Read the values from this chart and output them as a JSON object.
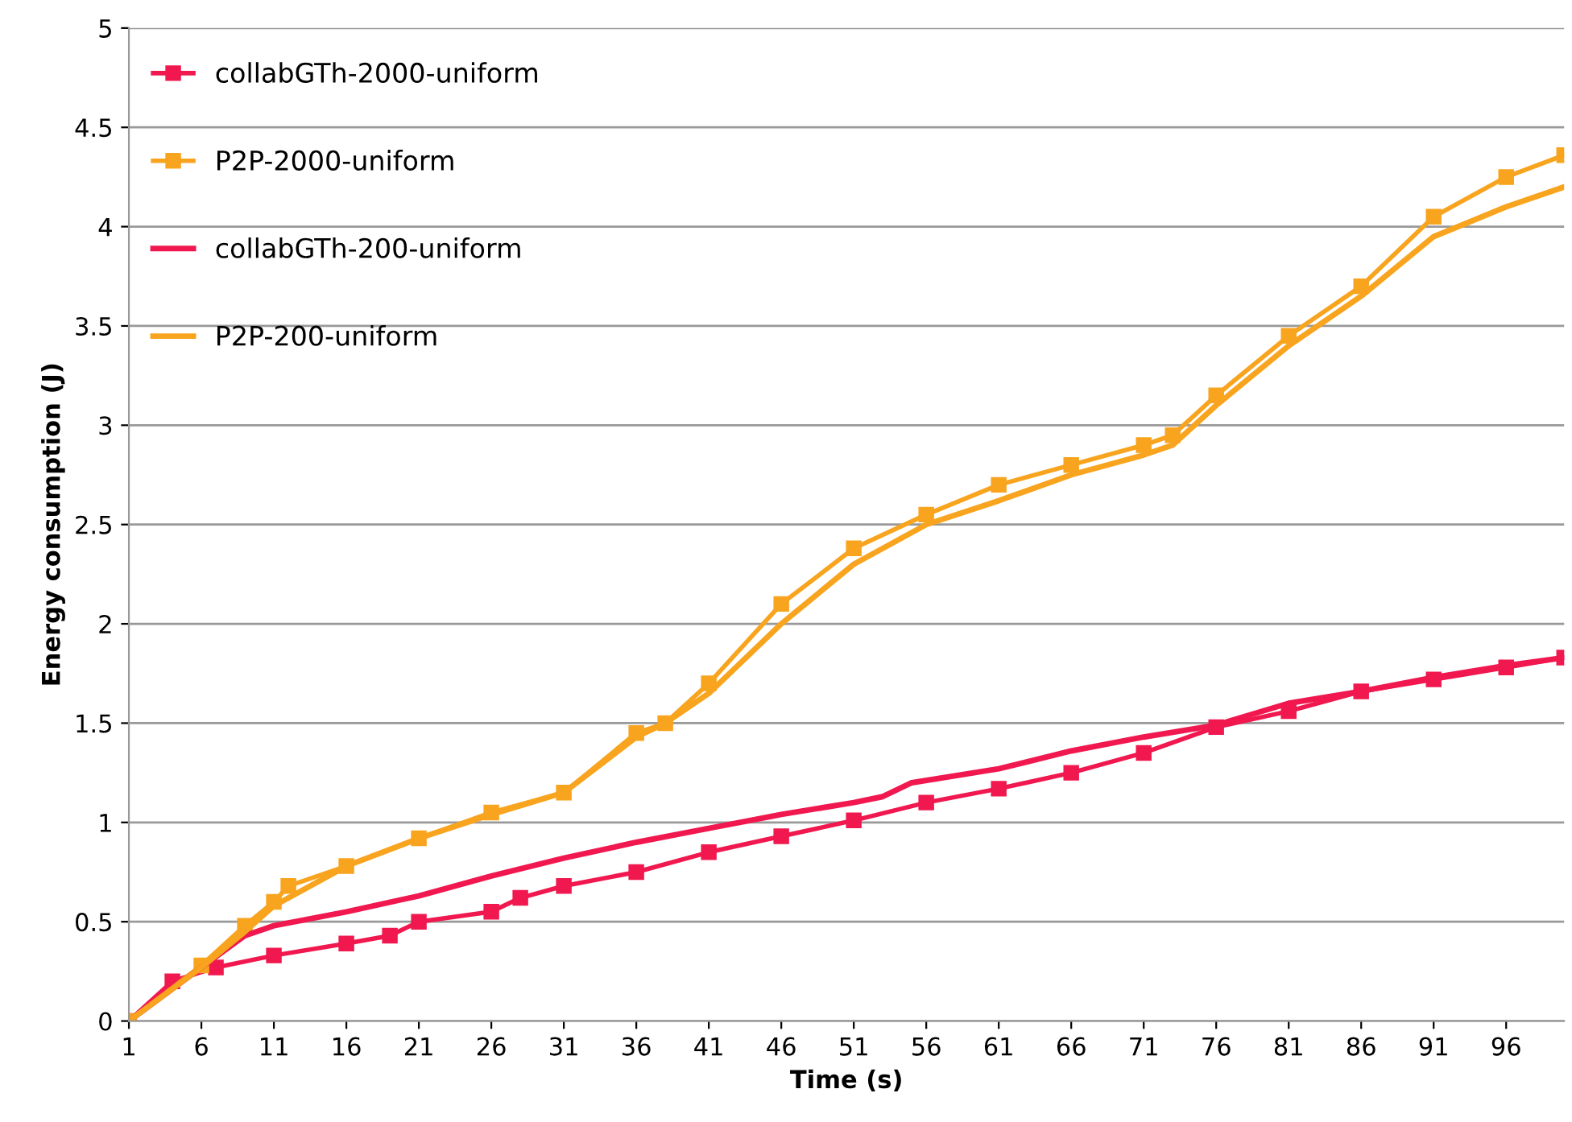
{
  "chart_data": {
    "type": "line",
    "xlabel": "Time (s)",
    "ylabel": "Energy consumption (J)",
    "xlim": [
      1,
      100
    ],
    "xticks": [
      1,
      6,
      11,
      16,
      21,
      26,
      31,
      36,
      41,
      46,
      51,
      56,
      61,
      66,
      71,
      76,
      81,
      86,
      91,
      96
    ],
    "ylim": [
      0,
      5
    ],
    "yticks": [
      0,
      0.5,
      1,
      1.5,
      2,
      2.5,
      3,
      3.5,
      4,
      4.5,
      5
    ],
    "grid": "y",
    "legend": "top left",
    "series": [
      {
        "name": "collabGTh-2000-uniform",
        "color": "#f0184f",
        "marker": "square",
        "x": [
          1,
          4,
          7,
          11,
          16,
          19,
          21,
          26,
          28,
          31,
          36,
          41,
          46,
          51,
          56,
          61,
          66,
          71,
          76,
          81,
          86,
          91,
          96,
          100
        ],
        "values": [
          0,
          0.2,
          0.27,
          0.33,
          0.39,
          0.43,
          0.5,
          0.55,
          0.62,
          0.68,
          0.75,
          0.85,
          0.93,
          1.01,
          1.1,
          1.17,
          1.25,
          1.35,
          1.48,
          1.56,
          1.66,
          1.72,
          1.78,
          1.83
        ]
      },
      {
        "name": "P2P-2000-uniform",
        "color": "#f8a41e",
        "marker": "square",
        "x": [
          1,
          6,
          9,
          11,
          12,
          16,
          21,
          26,
          31,
          36,
          38,
          41,
          46,
          51,
          56,
          61,
          66,
          71,
          73,
          76,
          81,
          86,
          91,
          96,
          100
        ],
        "values": [
          0,
          0.28,
          0.48,
          0.6,
          0.68,
          0.78,
          0.92,
          1.05,
          1.15,
          1.45,
          1.5,
          1.7,
          2.1,
          2.38,
          2.55,
          2.7,
          2.8,
          2.9,
          2.95,
          3.15,
          3.45,
          3.7,
          4.05,
          4.25,
          4.36
        ]
      },
      {
        "name": "collabGTh-200-uniform",
        "color": "#f0184f",
        "marker": "none",
        "x": [
          1,
          6,
          9,
          11,
          16,
          21,
          26,
          31,
          36,
          41,
          46,
          51,
          53,
          55,
          61,
          66,
          71,
          76,
          81,
          86,
          91,
          96,
          100
        ],
        "values": [
          0,
          0.27,
          0.43,
          0.48,
          0.55,
          0.63,
          0.73,
          0.82,
          0.9,
          0.97,
          1.04,
          1.1,
          1.13,
          1.2,
          1.27,
          1.36,
          1.43,
          1.49,
          1.6,
          1.66,
          1.73,
          1.79,
          1.83
        ]
      },
      {
        "name": "P2P-200-uniform",
        "color": "#f8a41e",
        "marker": "none",
        "x": [
          1,
          6,
          9,
          11,
          16,
          21,
          26,
          31,
          36,
          38,
          41,
          46,
          51,
          56,
          61,
          66,
          71,
          73,
          76,
          81,
          86,
          91,
          96,
          100
        ],
        "values": [
          0,
          0.27,
          0.45,
          0.58,
          0.78,
          0.92,
          1.04,
          1.15,
          1.43,
          1.5,
          1.65,
          2.0,
          2.3,
          2.5,
          2.62,
          2.75,
          2.85,
          2.9,
          3.1,
          3.4,
          3.65,
          3.95,
          4.1,
          4.2
        ]
      }
    ]
  }
}
